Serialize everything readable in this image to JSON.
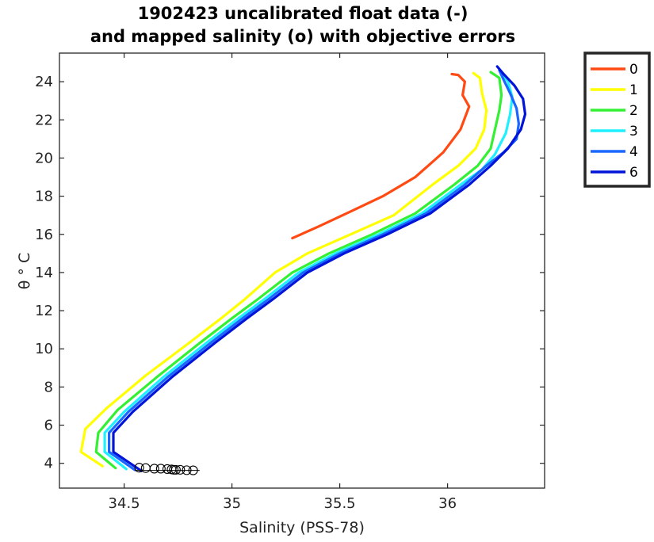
{
  "chart_data": {
    "type": "line",
    "title": [
      "1902423 uncalibrated float data (-)",
      "and mapped salinity (o) with objective errors"
    ],
    "xlabel": "Salinity (PSS-78)",
    "ylabel": "θ ° C",
    "xlim": [
      34.2,
      36.45
    ],
    "ylim": [
      2.7,
      25.5
    ],
    "xticks": [
      34.5,
      35,
      35.5,
      36
    ],
    "xtick_labels": [
      "34.5",
      "35",
      "35.5",
      "36"
    ],
    "yticks": [
      4,
      6,
      8,
      10,
      12,
      14,
      16,
      18,
      20,
      22,
      24
    ],
    "ytick_labels": [
      "4",
      "6",
      "8",
      "10",
      "12",
      "14",
      "16",
      "18",
      "20",
      "22",
      "24"
    ],
    "grid": false,
    "legend_position": "outside-top-right",
    "series": [
      {
        "name": "0",
        "color": "#ff4a14",
        "points": [
          [
            35.28,
            15.8
          ],
          [
            35.4,
            16.4
          ],
          [
            35.55,
            17.2
          ],
          [
            35.7,
            18.0
          ],
          [
            35.85,
            19.0
          ],
          [
            35.93,
            19.8
          ],
          [
            35.98,
            20.3
          ],
          [
            36.06,
            21.5
          ],
          [
            36.1,
            22.7
          ],
          [
            36.07,
            23.3
          ],
          [
            36.08,
            24.0
          ],
          [
            36.05,
            24.35
          ],
          [
            36.02,
            24.4
          ]
        ]
      },
      {
        "name": "1",
        "color": "#ffff00",
        "points": [
          [
            34.4,
            3.85
          ],
          [
            34.3,
            4.6
          ],
          [
            34.32,
            5.8
          ],
          [
            34.42,
            6.9
          ],
          [
            34.6,
            8.6
          ],
          [
            34.8,
            10.3
          ],
          [
            34.95,
            11.6
          ],
          [
            35.06,
            12.6
          ],
          [
            35.2,
            14.0
          ],
          [
            35.35,
            15.0
          ],
          [
            35.55,
            16.0
          ],
          [
            35.75,
            17.0
          ],
          [
            35.93,
            18.6
          ],
          [
            36.05,
            19.6
          ],
          [
            36.13,
            20.5
          ],
          [
            36.17,
            21.5
          ],
          [
            36.18,
            22.5
          ],
          [
            36.16,
            23.4
          ],
          [
            36.15,
            24.2
          ],
          [
            36.12,
            24.45
          ]
        ]
      },
      {
        "name": "2",
        "color": "#33f033",
        "points": [
          [
            34.46,
            3.75
          ],
          [
            34.37,
            4.6
          ],
          [
            34.38,
            5.6
          ],
          [
            34.47,
            6.8
          ],
          [
            34.65,
            8.5
          ],
          [
            34.85,
            10.3
          ],
          [
            35.0,
            11.6
          ],
          [
            35.12,
            12.6
          ],
          [
            35.28,
            14.0
          ],
          [
            35.45,
            15.0
          ],
          [
            35.65,
            16.0
          ],
          [
            35.85,
            17.1
          ],
          [
            36.03,
            18.6
          ],
          [
            36.14,
            19.6
          ],
          [
            36.2,
            20.5
          ],
          [
            36.22,
            21.5
          ],
          [
            36.24,
            22.5
          ],
          [
            36.25,
            23.3
          ],
          [
            36.24,
            24.2
          ],
          [
            36.2,
            24.5
          ]
        ]
      },
      {
        "name": "3",
        "color": "#1ff0ff",
        "points": [
          [
            34.51,
            3.7
          ],
          [
            34.41,
            4.6
          ],
          [
            34.41,
            5.6
          ],
          [
            34.5,
            6.7
          ],
          [
            34.68,
            8.5
          ],
          [
            34.88,
            10.3
          ],
          [
            35.03,
            11.6
          ],
          [
            35.15,
            12.6
          ],
          [
            35.31,
            14.0
          ],
          [
            35.48,
            15.0
          ],
          [
            35.68,
            16.0
          ],
          [
            35.88,
            17.1
          ],
          [
            36.06,
            18.6
          ],
          [
            36.16,
            19.4
          ],
          [
            36.22,
            20.2
          ],
          [
            36.27,
            21.3
          ],
          [
            36.29,
            22.3
          ],
          [
            36.3,
            23.2
          ],
          [
            36.28,
            24.0
          ],
          [
            36.25,
            24.5
          ]
        ]
      },
      {
        "name": "4",
        "color": "#1a66ff",
        "points": [
          [
            34.55,
            3.65
          ],
          [
            34.43,
            4.6
          ],
          [
            34.43,
            5.6
          ],
          [
            34.52,
            6.7
          ],
          [
            34.7,
            8.5
          ],
          [
            34.9,
            10.3
          ],
          [
            35.05,
            11.6
          ],
          [
            35.17,
            12.6
          ],
          [
            35.33,
            14.0
          ],
          [
            35.5,
            15.0
          ],
          [
            35.7,
            16.0
          ],
          [
            35.9,
            17.1
          ],
          [
            36.08,
            18.6
          ],
          [
            36.18,
            19.6
          ],
          [
            36.26,
            20.3
          ],
          [
            36.32,
            21.0
          ],
          [
            36.33,
            21.8
          ],
          [
            36.32,
            22.6
          ],
          [
            36.29,
            23.4
          ],
          [
            36.26,
            24.1
          ],
          [
            36.24,
            24.6
          ]
        ]
      },
      {
        "name": "6",
        "color": "#0014d9",
        "points": [
          [
            34.58,
            3.6
          ],
          [
            34.45,
            4.6
          ],
          [
            34.45,
            5.6
          ],
          [
            34.54,
            6.7
          ],
          [
            34.72,
            8.5
          ],
          [
            34.92,
            10.3
          ],
          [
            35.07,
            11.6
          ],
          [
            35.19,
            12.6
          ],
          [
            35.35,
            14.0
          ],
          [
            35.52,
            15.0
          ],
          [
            35.72,
            16.0
          ],
          [
            35.92,
            17.1
          ],
          [
            36.1,
            18.6
          ],
          [
            36.2,
            19.6
          ],
          [
            36.28,
            20.5
          ],
          [
            36.34,
            21.5
          ],
          [
            36.36,
            22.3
          ],
          [
            36.35,
            23.1
          ],
          [
            36.31,
            23.8
          ],
          [
            36.26,
            24.4
          ],
          [
            36.23,
            24.8
          ]
        ]
      }
    ],
    "mapped_salinity": {
      "marker": "circle",
      "points": [
        [
          34.57,
          3.77
        ],
        [
          34.6,
          3.75
        ],
        [
          34.64,
          3.72
        ],
        [
          34.67,
          3.72
        ],
        [
          34.7,
          3.7
        ],
        [
          34.72,
          3.68
        ],
        [
          34.73,
          3.66
        ],
        [
          34.74,
          3.66
        ],
        [
          34.76,
          3.66
        ],
        [
          34.79,
          3.64
        ],
        [
          34.82,
          3.63
        ]
      ],
      "error_bar_x": [
        34.55,
        34.85
      ]
    }
  }
}
